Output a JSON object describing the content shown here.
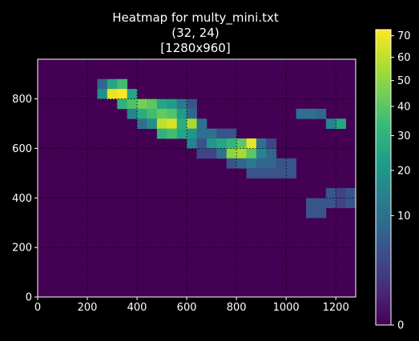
{
  "chart_data": {
    "type": "heatmap",
    "title_lines": [
      "Heatmap for multy_mini.txt",
      "(32, 24)",
      "[1280x960]"
    ],
    "xlabel": "",
    "ylabel": "",
    "xlim": [
      0,
      1280
    ],
    "ylim": [
      0,
      960
    ],
    "grid": true,
    "x_ticks": [
      0,
      200,
      400,
      600,
      800,
      1000,
      1200
    ],
    "y_ticks": [
      0,
      200,
      400,
      600,
      800
    ],
    "x_tick_labels": [
      "0",
      "200",
      "400",
      "600",
      "800",
      "1000",
      "1200"
    ],
    "y_tick_labels": [
      "0",
      "200",
      "400",
      "600",
      "800"
    ],
    "grid_shape": [
      32,
      24
    ],
    "cell_size": [
      40,
      40
    ],
    "colormap": "viridis",
    "colorbar": {
      "scale": "sqrt",
      "range": [
        0,
        73
      ],
      "ticks": [
        0,
        10,
        20,
        30,
        40,
        50,
        60,
        70
      ],
      "tick_labels": [
        "0",
        "10",
        "20",
        "30",
        "40",
        "50",
        "60",
        "70"
      ]
    },
    "cells": [
      [
        240,
        840,
        8
      ],
      [
        280,
        840,
        25
      ],
      [
        320,
        840,
        35
      ],
      [
        240,
        800,
        18
      ],
      [
        280,
        800,
        68
      ],
      [
        320,
        800,
        73
      ],
      [
        360,
        800,
        25
      ],
      [
        320,
        760,
        30
      ],
      [
        360,
        760,
        38
      ],
      [
        400,
        760,
        45
      ],
      [
        440,
        760,
        40
      ],
      [
        480,
        760,
        25
      ],
      [
        520,
        760,
        22
      ],
      [
        560,
        760,
        12
      ],
      [
        600,
        760,
        5
      ],
      [
        360,
        720,
        15
      ],
      [
        400,
        720,
        28
      ],
      [
        440,
        720,
        35
      ],
      [
        480,
        720,
        42
      ],
      [
        520,
        720,
        38
      ],
      [
        560,
        720,
        22
      ],
      [
        600,
        720,
        8
      ],
      [
        400,
        680,
        10
      ],
      [
        440,
        680,
        18
      ],
      [
        480,
        680,
        60
      ],
      [
        520,
        680,
        65
      ],
      [
        560,
        680,
        28
      ],
      [
        600,
        680,
        55
      ],
      [
        640,
        680,
        10
      ],
      [
        480,
        640,
        30
      ],
      [
        520,
        640,
        35
      ],
      [
        560,
        640,
        25
      ],
      [
        600,
        640,
        20
      ],
      [
        640,
        640,
        10
      ],
      [
        680,
        640,
        10
      ],
      [
        720,
        640,
        5
      ],
      [
        760,
        640,
        5
      ],
      [
        600,
        600,
        15
      ],
      [
        640,
        600,
        5
      ],
      [
        680,
        600,
        20
      ],
      [
        720,
        600,
        25
      ],
      [
        760,
        600,
        32
      ],
      [
        800,
        600,
        40
      ],
      [
        840,
        600,
        68
      ],
      [
        880,
        600,
        10
      ],
      [
        920,
        600,
        3
      ],
      [
        640,
        560,
        3
      ],
      [
        680,
        560,
        3
      ],
      [
        720,
        560,
        10
      ],
      [
        760,
        560,
        50
      ],
      [
        800,
        560,
        55
      ],
      [
        840,
        560,
        40
      ],
      [
        880,
        560,
        15
      ],
      [
        920,
        560,
        8
      ],
      [
        760,
        520,
        5
      ],
      [
        800,
        520,
        8
      ],
      [
        840,
        520,
        12
      ],
      [
        880,
        520,
        8
      ],
      [
        920,
        520,
        8
      ],
      [
        960,
        520,
        5
      ],
      [
        1000,
        520,
        5
      ],
      [
        840,
        480,
        5
      ],
      [
        880,
        480,
        5
      ],
      [
        920,
        480,
        5
      ],
      [
        960,
        480,
        5
      ],
      [
        1000,
        480,
        5
      ],
      [
        1040,
        720,
        10
      ],
      [
        1080,
        720,
        10
      ],
      [
        1120,
        720,
        8
      ],
      [
        1160,
        680,
        15
      ],
      [
        1200,
        680,
        25
      ],
      [
        1160,
        400,
        5
      ],
      [
        1200,
        400,
        3
      ],
      [
        1240,
        400,
        5
      ],
      [
        1080,
        360,
        5
      ],
      [
        1120,
        360,
        5
      ],
      [
        1160,
        360,
        5
      ],
      [
        1200,
        360,
        3
      ],
      [
        1240,
        360,
        5
      ],
      [
        1080,
        320,
        5
      ],
      [
        1120,
        320,
        5
      ]
    ]
  }
}
